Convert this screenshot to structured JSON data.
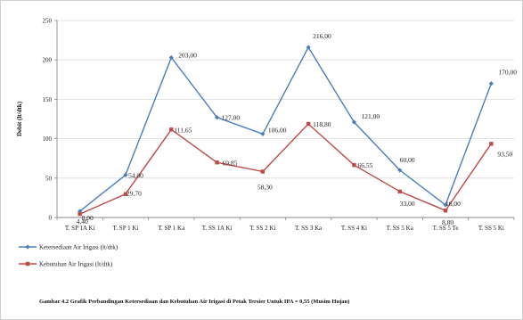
{
  "chart_data": {
    "type": "line",
    "categories": [
      "T. SP 1A Ki",
      "T. SP 1 Ki",
      "T. SP 1 Ka",
      "T. SS 1A Ki",
      "T. SS 2 Ki",
      "T. SS 3 Ka",
      "T. SS 4 Ki",
      "T. SS 5 Ka",
      "T. SS 5 Te",
      "T. SS 5 Ki"
    ],
    "ylabel": "Debit (lt/dtk)",
    "ylim": [
      0,
      250
    ],
    "yticks": [
      0,
      50,
      100,
      150,
      200,
      250
    ],
    "grid": true,
    "legend_position": "bottom-left",
    "series": [
      {
        "name": "Ketersediaan Air Irigasi (lt/dtk)",
        "color": "#4a7ebb",
        "values": [
          8.0,
          54.0,
          203.0,
          127.0,
          106.0,
          216.0,
          121.0,
          60.0,
          16.0,
          170.0
        ],
        "labels": [
          "8,00",
          "54,00",
          "203,00",
          "127,00",
          "106,00",
          "216,00",
          "121,00",
          "60,00",
          "16,00",
          "170,00"
        ]
      },
      {
        "name": "Kebutuhan Air Irigasi (lt/dtk)",
        "color": "#be4b48",
        "values": [
          4.4,
          29.7,
          111.65,
          69.85,
          58.3,
          118.8,
          66.55,
          33.0,
          8.8,
          93.5
        ],
        "labels": [
          "4,40",
          "29,70",
          "111,65",
          "69,85",
          "58,30",
          "118,80",
          "66,55",
          "33,00",
          "8,80",
          "93,50"
        ]
      }
    ]
  },
  "caption": "Gambar 4.2  Grafik Perbandingan  Ketersediaan dan Kebutuhan  Air Irigasi di Petak Tersier Untuk  IPA = 0,55 (Musim Hujan)"
}
